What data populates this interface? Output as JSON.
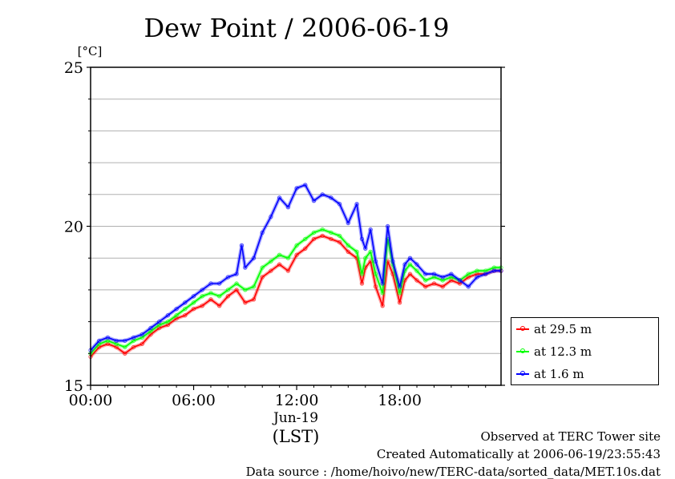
{
  "chart_data": {
    "type": "line",
    "title": "Dew Point / 2006-06-19",
    "ylabel": "[°C]",
    "xlabel": "(LST)",
    "xsublabel": "Jun-19",
    "ylim": [
      15,
      25
    ],
    "xlim": [
      0,
      23.9
    ],
    "y_ticks": [
      {
        "v": 15,
        "label": "15"
      },
      {
        "v": 20,
        "label": "20"
      },
      {
        "v": 25,
        "label": "25"
      }
    ],
    "y_gridlines": [
      16,
      17,
      18,
      19,
      20,
      21,
      22,
      23,
      24
    ],
    "x_ticks": [
      {
        "v": 0,
        "label": "00:00"
      },
      {
        "v": 6,
        "label": "06:00"
      },
      {
        "v": 12,
        "label": "12:00"
      },
      {
        "v": 18,
        "label": "18:00"
      }
    ],
    "grid": true,
    "legend_position": "bottom-right-outside",
    "series": [
      {
        "name": "at 29.5 m",
        "color": "#ff0000",
        "x": [
          0,
          0.5,
          1,
          1.5,
          2,
          2.5,
          3,
          3.5,
          4,
          4.5,
          5,
          5.5,
          6,
          6.5,
          7,
          7.5,
          8,
          8.5,
          9,
          9.5,
          10,
          10.5,
          11,
          11.5,
          12,
          12.5,
          13,
          13.5,
          14,
          14.5,
          15,
          15.5,
          15.8,
          16,
          16.3,
          16.6,
          17,
          17.3,
          17.6,
          18,
          18.3,
          18.6,
          19,
          19.5,
          20,
          20.5,
          21,
          21.5,
          22,
          22.5,
          23,
          23.5,
          23.9
        ],
        "y": [
          15.9,
          16.2,
          16.3,
          16.2,
          16.0,
          16.2,
          16.3,
          16.6,
          16.8,
          16.9,
          17.1,
          17.2,
          17.4,
          17.5,
          17.7,
          17.5,
          17.8,
          18.0,
          17.6,
          17.7,
          18.4,
          18.6,
          18.8,
          18.6,
          19.1,
          19.3,
          19.6,
          19.7,
          19.6,
          19.5,
          19.2,
          19.0,
          18.2,
          18.7,
          18.9,
          18.1,
          17.5,
          18.9,
          18.5,
          17.6,
          18.3,
          18.5,
          18.3,
          18.1,
          18.2,
          18.1,
          18.3,
          18.2,
          18.4,
          18.5,
          18.5,
          18.6,
          18.6
        ]
      },
      {
        "name": "at 12.3 m",
        "color": "#00ff00",
        "x": [
          0,
          0.5,
          1,
          1.5,
          2,
          2.5,
          3,
          3.5,
          4,
          4.5,
          5,
          5.5,
          6,
          6.5,
          7,
          7.5,
          8,
          8.5,
          9,
          9.5,
          10,
          10.5,
          11,
          11.5,
          12,
          12.5,
          13,
          13.5,
          14,
          14.5,
          15,
          15.5,
          15.8,
          16,
          16.3,
          16.6,
          17,
          17.3,
          17.6,
          18,
          18.3,
          18.6,
          19,
          19.5,
          20,
          20.5,
          21,
          21.5,
          22,
          22.5,
          23,
          23.5,
          23.9
        ],
        "y": [
          16.0,
          16.3,
          16.4,
          16.3,
          16.2,
          16.4,
          16.5,
          16.7,
          16.9,
          17.0,
          17.2,
          17.4,
          17.6,
          17.8,
          17.9,
          17.8,
          18.0,
          18.2,
          18.0,
          18.1,
          18.7,
          18.9,
          19.1,
          19.0,
          19.4,
          19.6,
          19.8,
          19.9,
          19.8,
          19.7,
          19.4,
          19.2,
          18.5,
          19.0,
          19.2,
          18.5,
          17.9,
          19.6,
          18.8,
          17.9,
          18.6,
          18.8,
          18.6,
          18.3,
          18.4,
          18.3,
          18.4,
          18.3,
          18.5,
          18.6,
          18.6,
          18.7,
          18.7
        ]
      },
      {
        "name": "at 1.6 m",
        "color": "#0000ff",
        "x": [
          0,
          0.5,
          1,
          1.5,
          2,
          2.5,
          3,
          3.5,
          4,
          4.5,
          5,
          5.5,
          6,
          6.5,
          7,
          7.5,
          8,
          8.5,
          8.8,
          9,
          9.5,
          10,
          10.5,
          11,
          11.5,
          12,
          12.5,
          13,
          13.5,
          14,
          14.5,
          15,
          15.5,
          15.8,
          16,
          16.3,
          16.6,
          17,
          17.3,
          17.6,
          18,
          18.3,
          18.6,
          19,
          19.5,
          20,
          20.5,
          21,
          21.5,
          22,
          22.5,
          23,
          23.5,
          23.9
        ],
        "y": [
          16.1,
          16.4,
          16.5,
          16.4,
          16.4,
          16.5,
          16.6,
          16.8,
          17.0,
          17.2,
          17.4,
          17.6,
          17.8,
          18.0,
          18.2,
          18.2,
          18.4,
          18.5,
          19.4,
          18.7,
          19.0,
          19.8,
          20.3,
          20.9,
          20.6,
          21.2,
          21.3,
          20.8,
          21.0,
          20.9,
          20.7,
          20.1,
          20.7,
          19.6,
          19.3,
          19.9,
          18.9,
          18.2,
          20.0,
          18.9,
          18.1,
          18.8,
          19.0,
          18.8,
          18.5,
          18.5,
          18.4,
          18.5,
          18.3,
          18.1,
          18.4,
          18.5,
          18.6,
          18.6
        ]
      }
    ]
  },
  "footer": {
    "line1": "Observed at TERC Tower site",
    "line2": "Created Automatically at 2006-06-19/23:55:43",
    "line3": "Data source : /home/hoivo/new/TERC-data/sorted_data/MET.10s.dat"
  }
}
